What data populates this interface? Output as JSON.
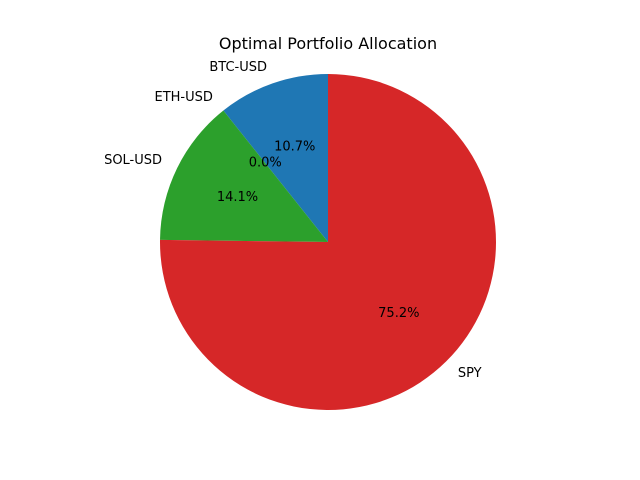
{
  "chart_data": {
    "type": "pie",
    "title": "Optimal Portfolio Allocation",
    "start_angle_deg": 90,
    "direction": "counterclockwise",
    "slices": [
      {
        "label": "BTC-USD",
        "value": 10.7,
        "pct_label": "10.7%",
        "color": "#1f77b4"
      },
      {
        "label": "ETH-USD",
        "value": 0.0,
        "pct_label": "0.0%",
        "color": "#ff7f0e"
      },
      {
        "label": "SOL-USD",
        "value": 14.1,
        "pct_label": "14.1%",
        "color": "#2ca02c"
      },
      {
        "label": "SPY",
        "value": 75.2,
        "pct_label": "75.2%",
        "color": "#d62728"
      }
    ]
  }
}
